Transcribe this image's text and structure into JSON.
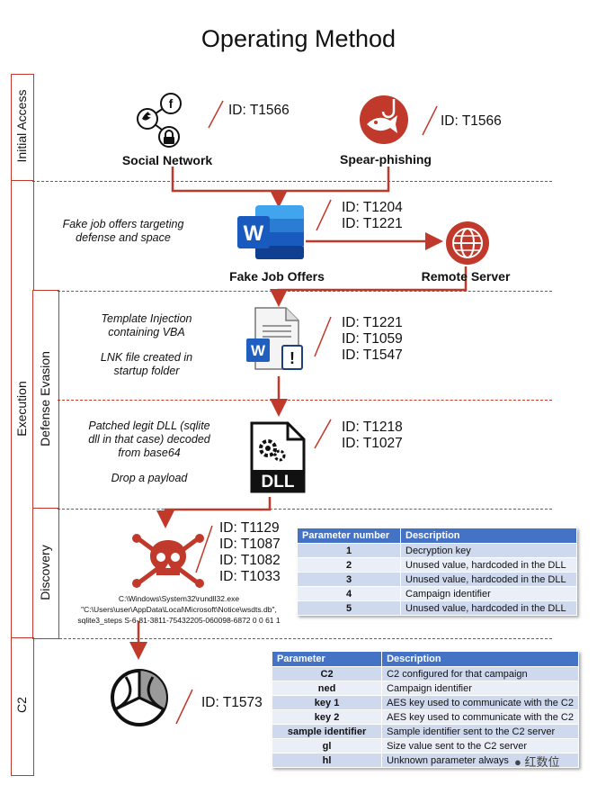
{
  "title": "Operating Method",
  "colors": {
    "accent": "#c0392b",
    "word_blue": "#1f5fbf",
    "table_header": "#4472c4"
  },
  "phases": {
    "initial_access": "Initial Access",
    "execution": "Execution",
    "defense_evasion": "Defense Evasion",
    "discovery": "Discovery",
    "c2": "C2"
  },
  "initial_access": {
    "social": {
      "label": "Social Network",
      "id": "ID: T1566",
      "icons": [
        "twitter-icon",
        "facebook-icon",
        "lock-icon"
      ]
    },
    "phish": {
      "label": "Spear-phishing",
      "id": "ID: T1566",
      "icons": [
        "fish-hook-icon"
      ]
    }
  },
  "execution": {
    "note": "Fake job offers targeting defense and space",
    "doc_label": "Fake Job Offers",
    "ids": [
      "ID: T1204",
      "ID: T1221"
    ],
    "server_label": "Remote Server"
  },
  "defense_evasion": {
    "notes": [
      "Template Injection containing VBA",
      "LNK file created in startup folder"
    ],
    "ids_a": [
      "ID: T1221",
      "ID: T1059",
      "ID: T1547"
    ],
    "dll_notes": [
      "Patched legit DLL (sqlite dll in that case) decoded from base64",
      "Drop a payload"
    ],
    "ids_b": [
      "ID: T1218",
      "ID: T1027"
    ],
    "dll_icon_text": "DLL"
  },
  "discovery": {
    "ids": [
      "ID: T1129",
      "ID: T1087",
      "ID: T1082",
      "ID: T1033"
    ],
    "command": [
      "C:\\Windows\\System32\\rundll32.exe",
      "\"C:\\Users\\user\\AppData\\Local\\Microsoft\\Notice\\wsdts.db\",",
      "sqlite3_steps S-6-81-3811-75432205-060098-6872 0 0 61 1"
    ],
    "table": {
      "headers": [
        "Parameter number",
        "Description"
      ],
      "rows": [
        [
          "1",
          "Decryption key"
        ],
        [
          "2",
          "Unused value, hardcoded in the DLL"
        ],
        [
          "3",
          "Unused value, hardcoded in the DLL"
        ],
        [
          "4",
          "Campaign identifier"
        ],
        [
          "5",
          "Unused value, hardcoded in the DLL"
        ]
      ]
    }
  },
  "c2": {
    "id": "ID: T1573",
    "table": {
      "headers": [
        "Parameter",
        "Description"
      ],
      "rows": [
        [
          "C2",
          "C2 configured for that campaign"
        ],
        [
          "ned",
          "Campaign identifier"
        ],
        [
          "key 1",
          "AES key used to communicate with the C2"
        ],
        [
          "key 2",
          "AES key used to communicate with the C2"
        ],
        [
          "sample identifier",
          "Sample identifier sent to the C2 server"
        ],
        [
          "gl",
          "Size value sent to the C2 server"
        ],
        [
          "hl",
          "Unknown parameter always"
        ]
      ]
    }
  },
  "watermark": "红数位"
}
